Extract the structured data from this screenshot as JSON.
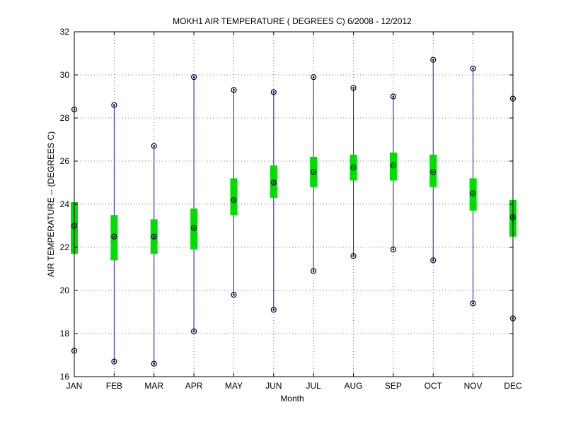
{
  "chart_data": {
    "type": "box",
    "title": "MOKH1  AIR TEMPERATURE ( DEGREES C) 6/2008 - 12/2012",
    "xlabel": "Month",
    "ylabel": "AIR TEMPERATURE -- (DEGREES C)",
    "ylim": [
      16,
      32
    ],
    "yticks": [
      16,
      18,
      20,
      22,
      24,
      26,
      28,
      30,
      32
    ],
    "ytick_labels": [
      "16",
      "18",
      "20",
      "22",
      "24",
      "26",
      "28",
      "30",
      "32"
    ],
    "grid": true,
    "categories": [
      "JAN",
      "FEB",
      "MAR",
      "APR",
      "MAY",
      "JUN",
      "JUL",
      "AUG",
      "SEP",
      "OCT",
      "NOV",
      "DEC"
    ],
    "min": [
      17.2,
      16.7,
      16.6,
      18.1,
      19.8,
      19.1,
      20.9,
      21.6,
      21.9,
      21.4,
      19.4,
      18.7
    ],
    "max": [
      28.4,
      28.6,
      26.7,
      29.9,
      29.3,
      29.2,
      29.9,
      29.4,
      29.0,
      30.7,
      30.3,
      28.9
    ],
    "mean": [
      23.0,
      22.5,
      22.5,
      22.9,
      24.2,
      25.0,
      25.5,
      25.7,
      25.8,
      25.5,
      24.5,
      23.4
    ],
    "q_low": [
      21.7,
      21.4,
      21.7,
      21.9,
      23.5,
      24.3,
      24.8,
      25.1,
      25.1,
      24.8,
      23.7,
      22.5
    ],
    "q_high": [
      24.1,
      23.5,
      23.3,
      23.8,
      25.2,
      25.8,
      26.2,
      26.3,
      26.4,
      26.3,
      25.2,
      24.2
    ],
    "colors": {
      "whisker": "#1a1aa6",
      "box": "#00dd00",
      "marker": "#000033",
      "grid": "#555555"
    }
  }
}
